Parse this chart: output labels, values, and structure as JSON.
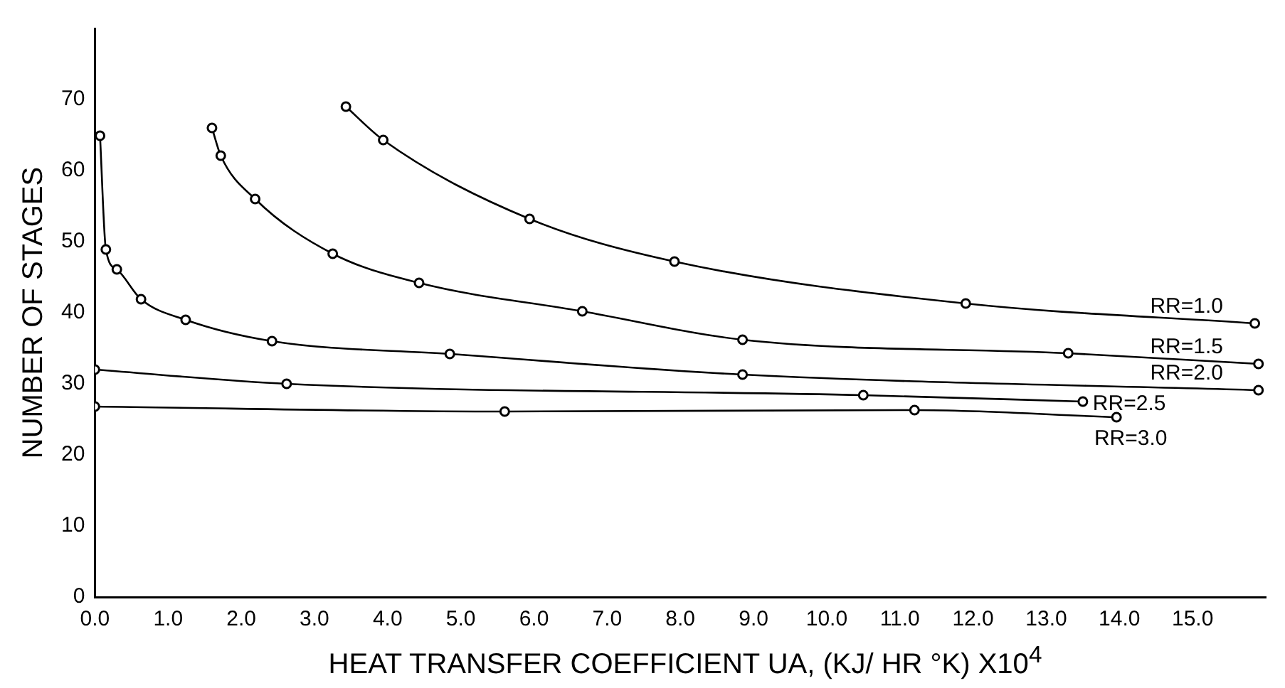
{
  "chart_data": {
    "type": "line",
    "xlabel": "HEAT TRANSFER COEFFICIENT UA, (KJ/ HR °K) X10$^{4}$",
    "ylabel": "NUMBER OF STAGES",
    "xlim": [
      0,
      16
    ],
    "ylim": [
      0,
      80
    ],
    "xticks": [
      {
        "value": 0,
        "label": "0.0"
      },
      {
        "value": 1,
        "label": "1.0"
      },
      {
        "value": 2,
        "label": "2.0"
      },
      {
        "value": 3,
        "label": "3.0"
      },
      {
        "value": 4,
        "label": "4.0"
      },
      {
        "value": 5,
        "label": "5.0"
      },
      {
        "value": 6,
        "label": "6.0"
      },
      {
        "value": 7,
        "label": "7.0"
      },
      {
        "value": 8,
        "label": "8.0"
      },
      {
        "value": 9,
        "label": "9.0"
      },
      {
        "value": 10,
        "label": "10.0"
      },
      {
        "value": 11,
        "label": "11.0"
      },
      {
        "value": 12,
        "label": "12.0"
      },
      {
        "value": 13,
        "label": "13.0"
      },
      {
        "value": 14,
        "label": "14.0"
      },
      {
        "value": 15,
        "label": "15.0"
      }
    ],
    "yticks": [
      0,
      10,
      20,
      30,
      40,
      50,
      60,
      70
    ],
    "grid": false,
    "legend": false,
    "marker": "circle",
    "line_style": "solid",
    "series": [
      {
        "name": "RR=1.0",
        "color": "#000000",
        "x": [
          3.43,
          3.94,
          5.94,
          7.92,
          11.9,
          15.85
        ],
        "values": [
          69.0,
          64.3,
          53.2,
          47.2,
          41.3,
          38.5
        ]
      },
      {
        "name": "RR=1.5",
        "color": "#000000",
        "x": [
          1.6,
          1.72,
          2.19,
          3.25,
          4.43,
          6.66,
          8.85,
          13.3,
          15.9
        ],
        "values": [
          66.0,
          62.1,
          56.0,
          48.3,
          44.2,
          40.2,
          36.2,
          34.3,
          32.8
        ]
      },
      {
        "name": "RR=2.0",
        "color": "#000000",
        "x": [
          0.07,
          0.15,
          0.3,
          0.63,
          1.24,
          2.42,
          4.85,
          8.85,
          15.9
        ],
        "values": [
          64.9,
          48.9,
          46.1,
          41.9,
          39.0,
          36.0,
          34.2,
          31.3,
          29.1
        ]
      },
      {
        "name": "RR=2.5",
        "color": "#000000",
        "x": [
          0,
          2.62,
          10.5,
          13.5
        ],
        "values": [
          32.0,
          30.0,
          28.4,
          27.5
        ]
      },
      {
        "name": "RR=3.0",
        "color": "#000000",
        "x": [
          0,
          5.6,
          11.2,
          13.96
        ],
        "values": [
          26.8,
          26.1,
          26.3,
          25.3
        ]
      }
    ]
  }
}
